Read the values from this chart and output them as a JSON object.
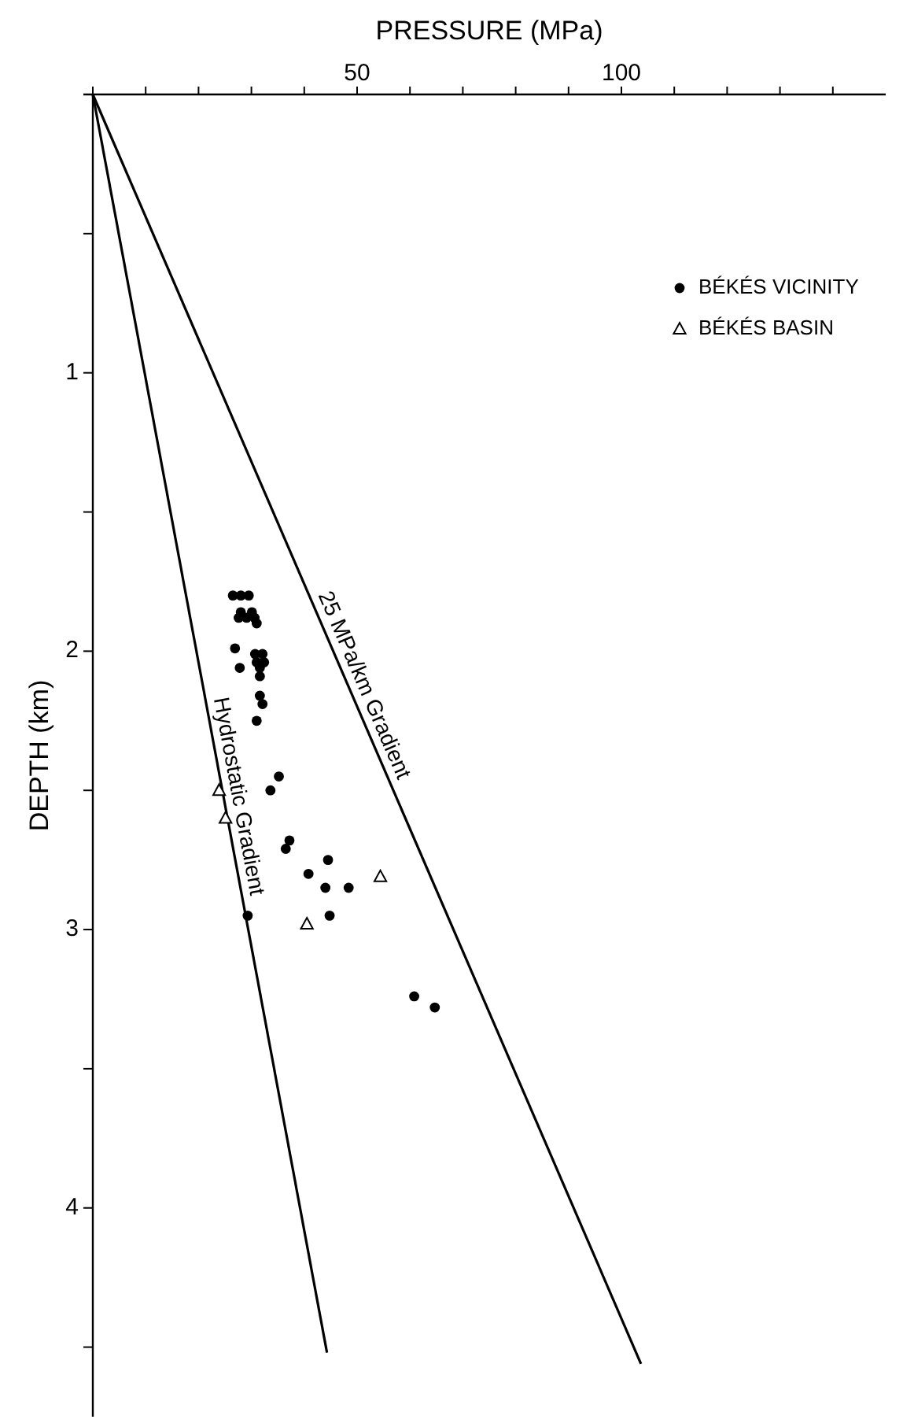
{
  "chart_data": {
    "type": "scatter",
    "xlabel": "PRESSURE  (MPa)",
    "ylabel": "DEPTH  (km)",
    "xlim": [
      0,
      150
    ],
    "ylim": [
      4.75,
      0
    ],
    "xticks": [
      {
        "value": 0,
        "label": null
      },
      {
        "value": 10,
        "label": null
      },
      {
        "value": 20,
        "label": null
      },
      {
        "value": 30,
        "label": null
      },
      {
        "value": 40,
        "label": null
      },
      50,
      {
        "value": 60,
        "label": null
      },
      {
        "value": 70,
        "label": null
      },
      {
        "value": 80,
        "label": null
      },
      {
        "value": 90,
        "label": null
      },
      100,
      {
        "value": 110,
        "label": null
      },
      {
        "value": 120,
        "label": null
      },
      {
        "value": 130,
        "label": null
      },
      {
        "value": 140,
        "label": null
      }
    ],
    "yticks": [
      {
        "value": 0.5,
        "label": null
      },
      1,
      {
        "value": 1.5,
        "label": null
      },
      2,
      {
        "value": 2.5,
        "label": null
      },
      3,
      {
        "value": 3.5,
        "label": null
      },
      4,
      {
        "value": 4.5,
        "label": null
      }
    ],
    "legend": "top right",
    "grid": false,
    "series": [
      {
        "name": "BÉKÉS VICINITY",
        "marker": "circle",
        "color": "#000000",
        "x": [
          26.5,
          28.0,
          29.5,
          28.0,
          30.1,
          27.6,
          29.1,
          30.6,
          31.0,
          26.9,
          30.7,
          32.1,
          31.0,
          32.4,
          31.6,
          27.8,
          31.6,
          31.6,
          32.1,
          31.0,
          35.2,
          33.6,
          37.2,
          36.5,
          44.5,
          40.8,
          44.0,
          48.4,
          44.8,
          29.3,
          60.8,
          64.7
        ],
        "values": [
          1.8,
          1.8,
          1.8,
          1.86,
          1.86,
          1.88,
          1.88,
          1.88,
          1.9,
          1.99,
          2.01,
          2.01,
          2.04,
          2.04,
          2.06,
          2.06,
          2.09,
          2.16,
          2.19,
          2.25,
          2.45,
          2.5,
          2.68,
          2.71,
          2.75,
          2.8,
          2.85,
          2.85,
          2.95,
          2.95,
          3.24,
          3.28
        ]
      },
      {
        "name": "BÉKÉS BASIN",
        "marker": "triangle",
        "color": "#000000",
        "x": [
          23.9,
          25.1,
          54.4,
          40.5
        ],
        "values": [
          2.5,
          2.6,
          2.81,
          2.98
        ]
      },
      {
        "name": "Hydrostatic Gradient",
        "type": "line",
        "color": "#000000",
        "x": [
          0,
          44.3
        ],
        "values": [
          0,
          4.52
        ]
      },
      {
        "name": "25 MPa/km Gradient",
        "type": "line",
        "color": "#000000",
        "x": [
          0,
          103.7
        ],
        "values": [
          0,
          4.56
        ]
      }
    ]
  }
}
